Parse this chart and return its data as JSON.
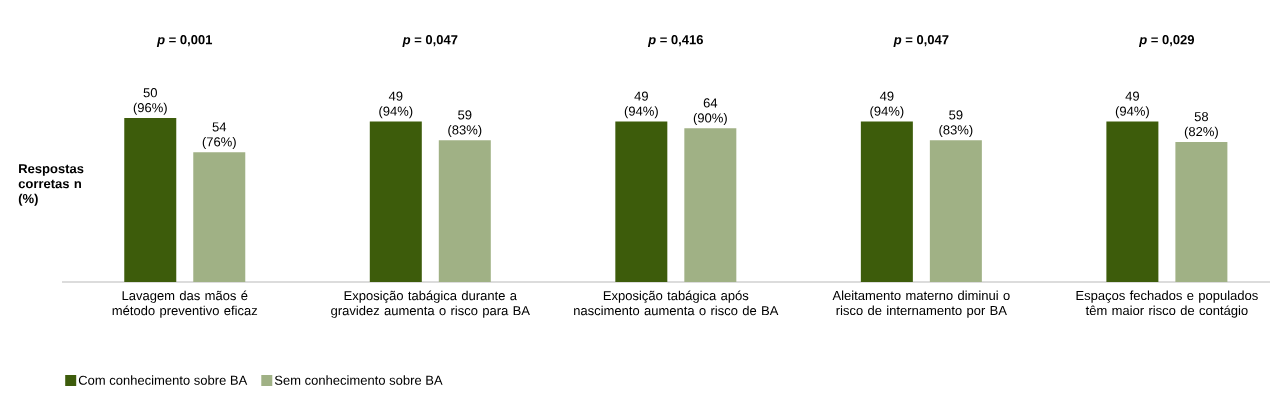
{
  "chart_data": {
    "type": "bar",
    "ylabel": "Respostas corretas n (%)",
    "categories": [
      "Lavagem das mãos é método preventivo eficaz",
      "Exposição tabágica durante a gravidez aumenta o risco para BA",
      "Exposição tabágica após nascimento aumenta o risco de BA",
      "Aleitamento materno diminui o risco de internamento por BA",
      "Espaços fechados e populados têm maior risco de contágio"
    ],
    "series": [
      {
        "name": "Com conhecimento sobre BA",
        "color": "#3d5c0b",
        "values": [
          96,
          94,
          94,
          94,
          94
        ],
        "value_labels": [
          "50 (96%)",
          "49 (94%)",
          "49 (94%)",
          "49 (94%)",
          "49 (94%)"
        ]
      },
      {
        "name": "Sem conhecimento sobre BA",
        "color": "#a0b185",
        "values": [
          76,
          83,
          90,
          83,
          82
        ],
        "value_labels": [
          "54 (76%)",
          "59 (83%)",
          "64 (90%)",
          "59 (83%)",
          "58 (82%)"
        ]
      }
    ],
    "annotations": [
      "*p* = 0,001",
      "*p* = 0,047",
      "*p* = 0,416",
      "*p* = 0,047",
      "*p* = 0,029"
    ],
    "legend": "bottom left"
  }
}
